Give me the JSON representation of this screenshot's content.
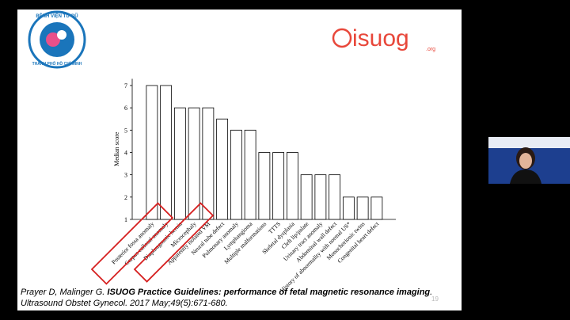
{
  "logo": {
    "line1": "BỆNH VIỆN TỪ DŨ",
    "line2": "THÀNH PHỐ HỒ CHÍ MINH"
  },
  "isuog": {
    "name": "isuog",
    "suffix": ".org"
  },
  "citation": {
    "authors": "Prayer D, Malinger G. ",
    "title": "ISUOG Practice Guidelines: performance of fetal magnetic resonance imaging",
    "end": ".",
    "journal": "Ultrasound Obstet Gynecol. 2017 May;49(5):671-680."
  },
  "slide_number": "19",
  "chart_data": {
    "type": "bar",
    "y_label": "Median score",
    "categories": [
      "Posterior fossa anomaly",
      "Corpus callosal anomaly",
      "Diaphragmatic hernia",
      "Microcephaly",
      "Apparently isolated VM",
      "Neural tube defect",
      "Pulmonary anomaly",
      "Lymphangioma",
      "Multiple malformations",
      "TTTS",
      "Skeletal dysplasia",
      "Cleft lip/palate",
      "Urinary tract anomaly",
      "Abdominal wall defect",
      "History of abnormality with normal US*",
      "Monochorionic twins",
      "Congenital heart defect"
    ],
    "values": [
      7,
      7,
      6,
      6,
      6,
      5.5,
      5,
      5,
      4,
      4,
      4,
      3,
      3,
      3,
      2,
      2,
      2
    ],
    "color": "#ffffff",
    "ylim": [
      1,
      7.3
    ],
    "yticks": [
      1,
      2,
      3,
      4,
      5,
      6,
      7
    ],
    "grid": false
  }
}
